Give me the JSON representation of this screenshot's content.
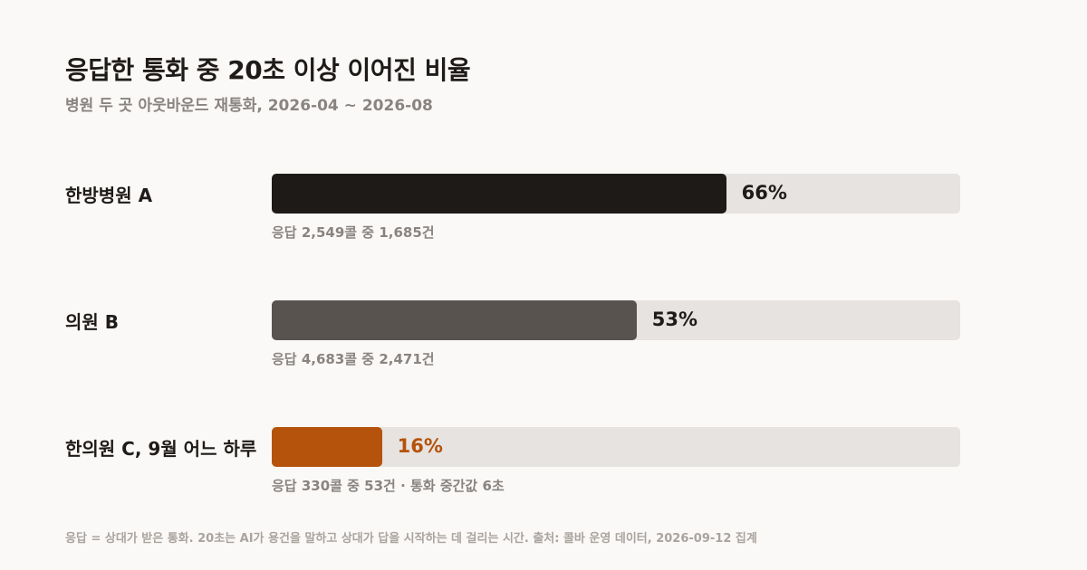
{
  "title": "응답한 통화 중 20초 이상 이어진 비율",
  "subtitle": "병원 두 곳 아웃바운드 재통화, 2026-04 ~ 2026-08",
  "footer": "응답 = 상대가 받은 통화. 20초는 AI가 용건을 말하고 상대가 답을 시작하는 데 걸리는 시간. 출처: 콜바 운영 데이터, 2026-09-12 집계",
  "chart_data": {
    "type": "bar",
    "orientation": "horizontal",
    "title": "응답한 통화 중 20초 이상 이어진 비율",
    "subtitle": "병원 두 곳 아웃바운드 재통화, 2026-04 ~ 2026-08",
    "xlim": [
      0,
      100
    ],
    "grid": false,
    "categories": [
      "한방병원 A",
      "의원 B",
      "한의원 C, 9월 어느 하루"
    ],
    "values": [
      66,
      53,
      16
    ],
    "value_labels": [
      "66%",
      "53%",
      "16%"
    ],
    "colors": [
      "#1e1a17",
      "#58534e",
      "#b5520b"
    ],
    "value_label_colors": [
      "#1f1b18",
      "#1f1b18",
      "#b5520b"
    ],
    "notes": [
      "응답 2,549콜 중 1,685건",
      "응답 4,683콜 중 2,471건",
      "응답 330콜 중 53건 · 통화 중간값 6초"
    ]
  }
}
